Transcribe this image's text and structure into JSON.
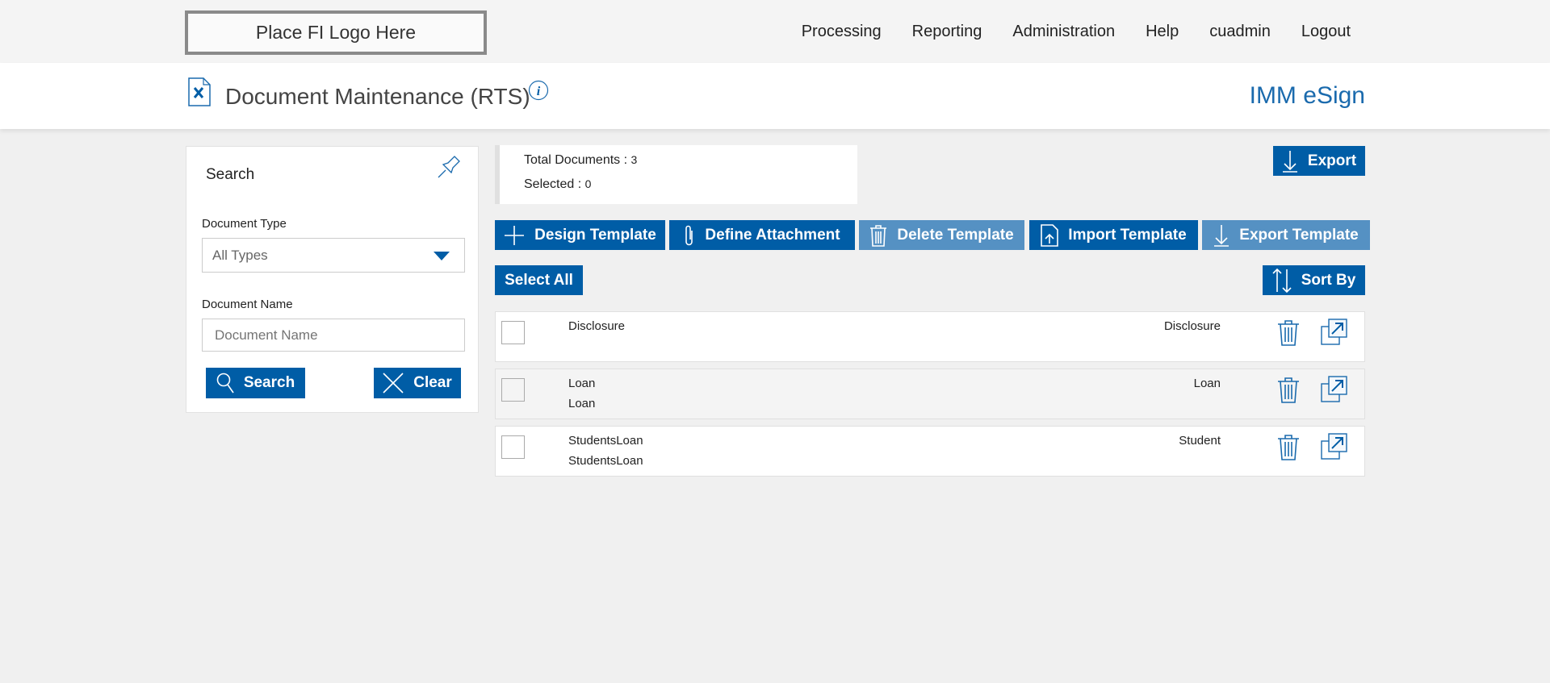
{
  "header": {
    "logo_text": "Place FI Logo Here",
    "nav": [
      "Processing",
      "Reporting",
      "Administration",
      "Help",
      "cuadmin",
      "Logout"
    ]
  },
  "page": {
    "title": "Document Maintenance (RTS)",
    "brand": "IMM eSign"
  },
  "search": {
    "title": "Search",
    "doc_type_label": "Document Type",
    "doc_type_value": "All Types",
    "doc_name_label": "Document Name",
    "doc_name_placeholder": "Document Name",
    "search_label": "Search",
    "clear_label": "Clear"
  },
  "stats": {
    "total_label": "Total Documents : ",
    "total": "3",
    "selected_label": "Selected : ",
    "selected": "0"
  },
  "toolbar": {
    "export": "Export",
    "design": "Design Template",
    "define": "Define Attachment",
    "delete": "Delete Template",
    "import": "Import Template",
    "export_template": "Export Template",
    "select_all": "Select All",
    "sort_by": "Sort By"
  },
  "documents": [
    {
      "name": "Disclosure",
      "subname": "",
      "type": "Disclosure"
    },
    {
      "name": "Loan",
      "subname": "Loan",
      "type": "Loan"
    },
    {
      "name": "StudentsLoan",
      "subname": "StudentsLoan",
      "type": "Student"
    }
  ],
  "colors": {
    "primary": "#005da6",
    "disabled": "#5591c3",
    "background": "#f0f0f0"
  }
}
